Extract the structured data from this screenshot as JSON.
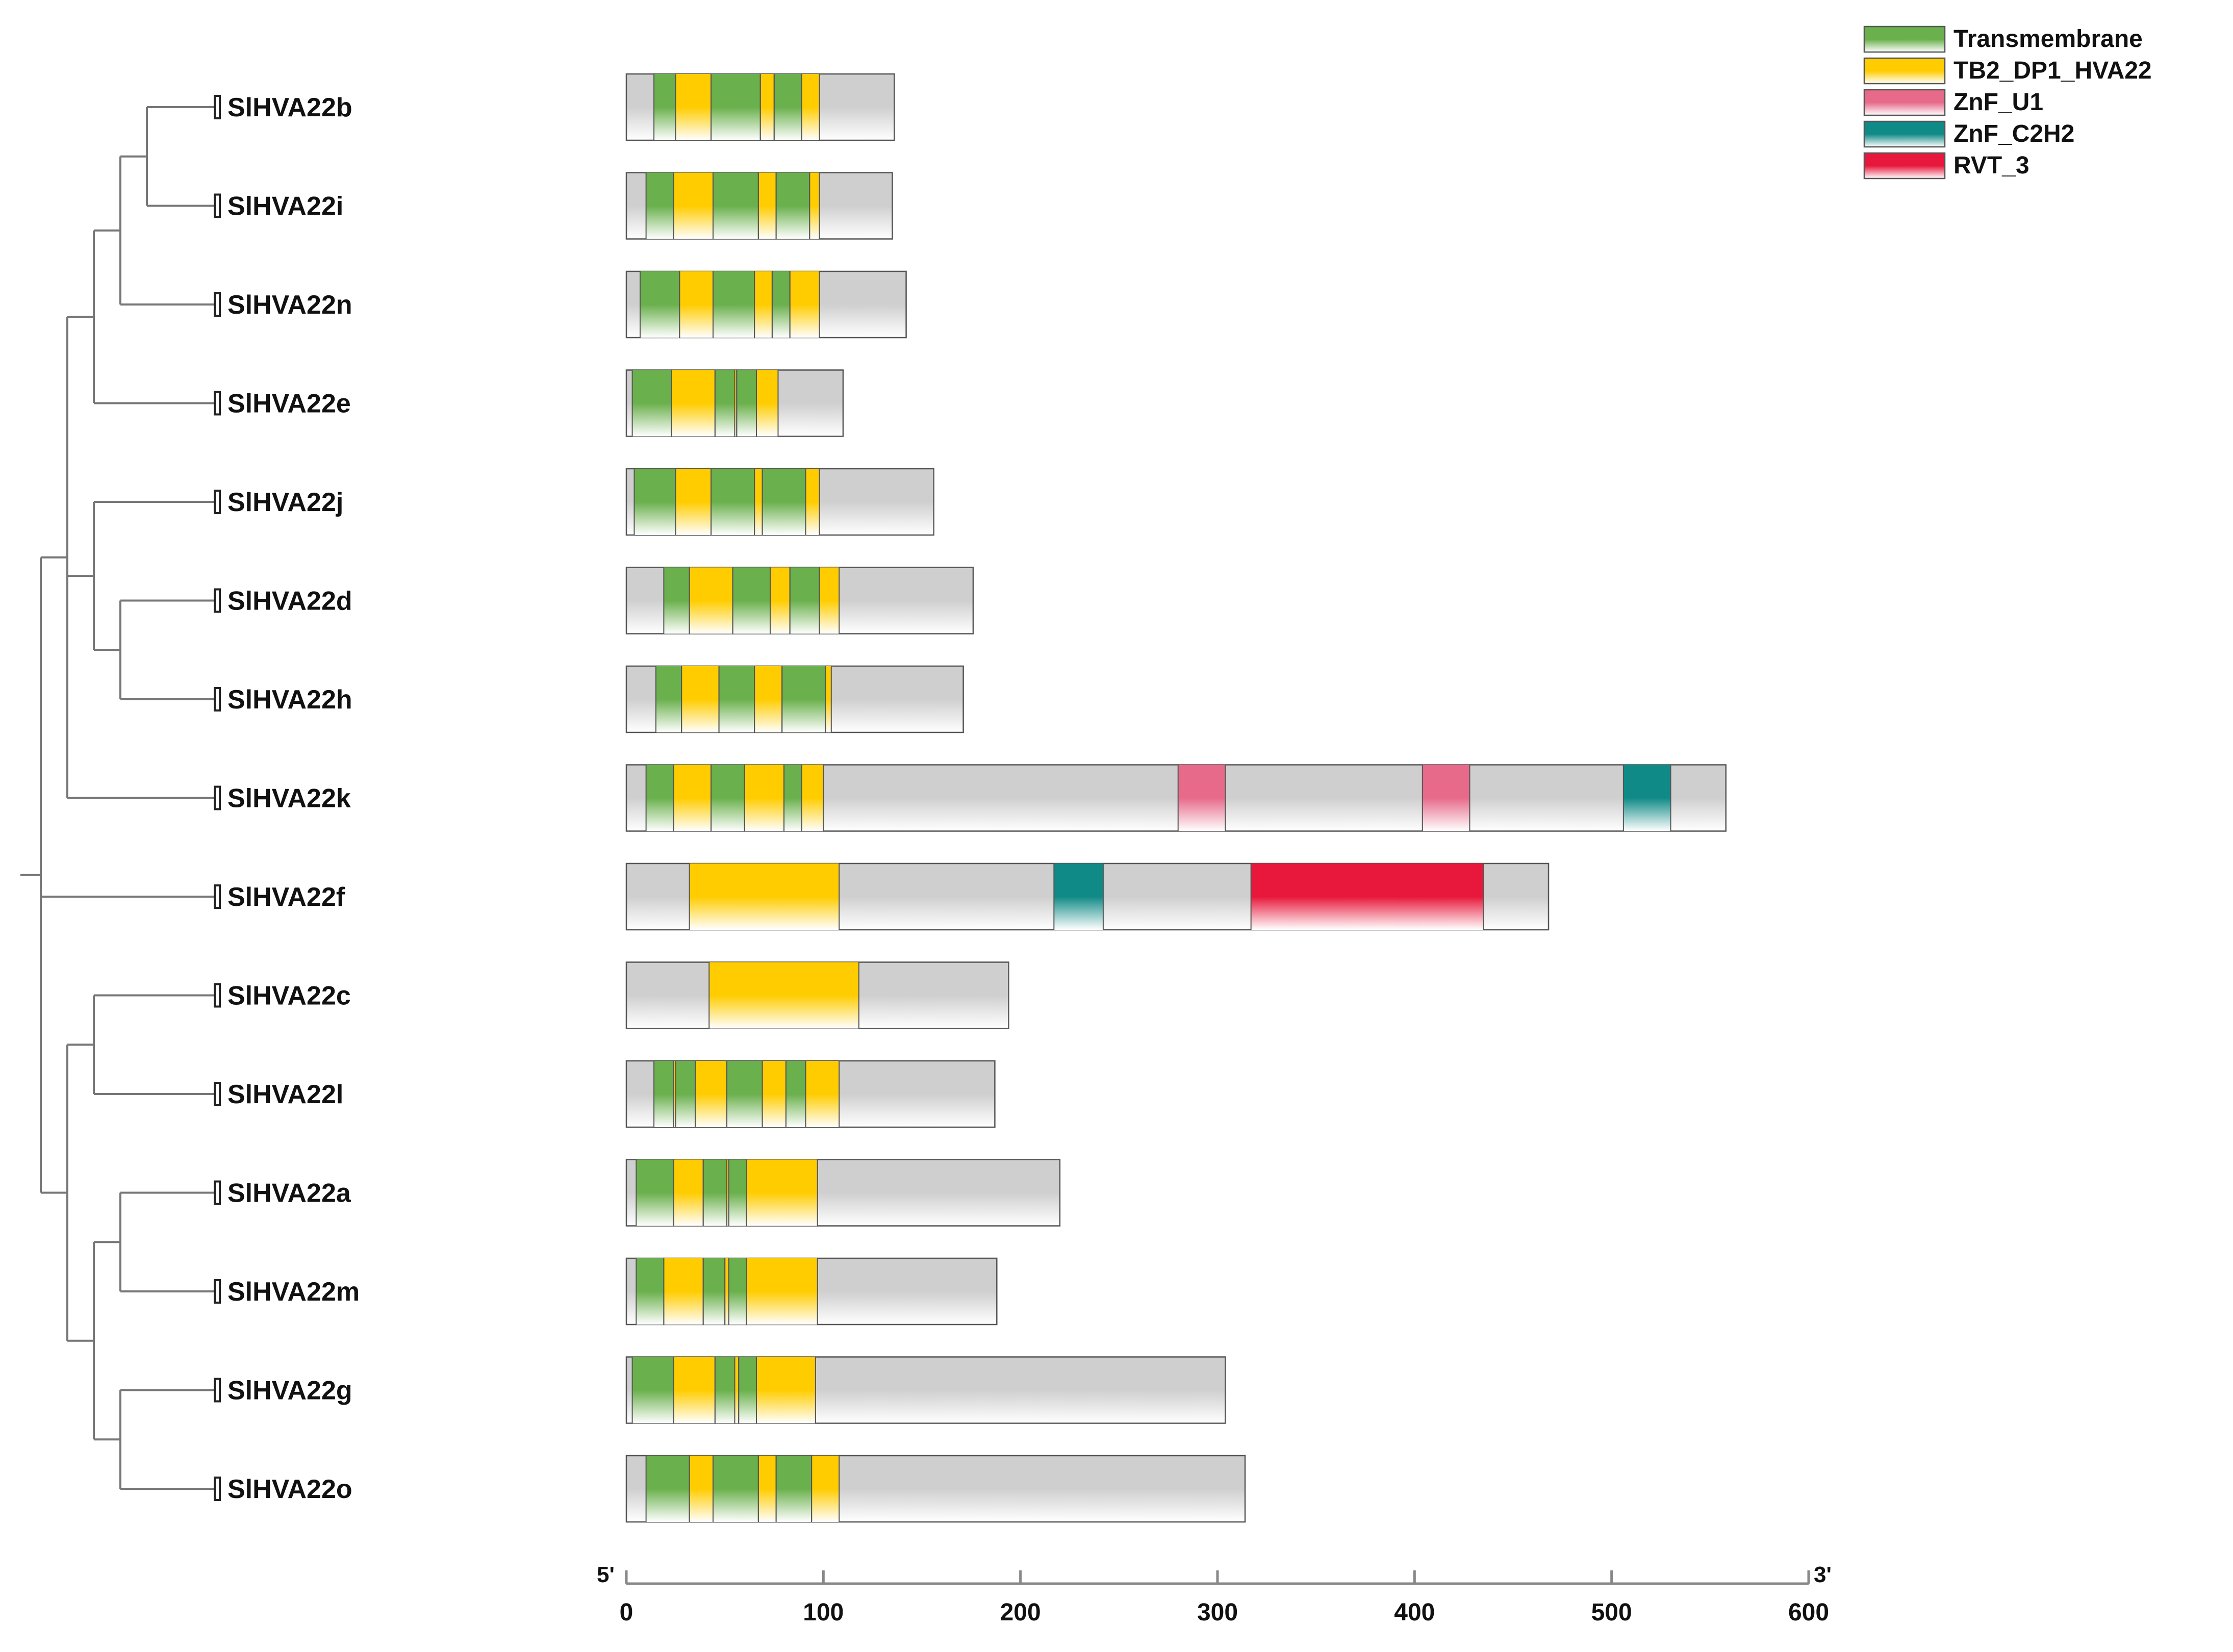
{
  "legend": [
    {
      "key": "Transmembrane",
      "label": "Transmembrane",
      "color": "#6ab04c"
    },
    {
      "key": "TB2",
      "label": "TB2_DP1_HVA22",
      "color": "#ffcc00"
    },
    {
      "key": "ZnF_U1",
      "label": "ZnF_U1",
      "color": "#e76a8a"
    },
    {
      "key": "ZnF_C2H2",
      "label": "ZnF_C2H2",
      "color": "#108a86"
    },
    {
      "key": "RVT_3",
      "label": "RVT_3",
      "color": "#e8183c"
    }
  ],
  "axis": {
    "min": 0,
    "max": 600,
    "step": 100,
    "ticks": [
      "0",
      "100",
      "200",
      "300",
      "400",
      "500",
      "600"
    ],
    "left_label": "5'",
    "right_label": "3'"
  },
  "proteins": [
    {
      "name": "SlHVA22b",
      "length": 136,
      "domains": [
        {
          "type": "Transmembrane",
          "start": 14,
          "end": 25
        },
        {
          "type": "TB2",
          "start": 25,
          "end": 43
        },
        {
          "type": "Transmembrane",
          "start": 43,
          "end": 68
        },
        {
          "type": "TB2",
          "start": 68,
          "end": 75
        },
        {
          "type": "Transmembrane",
          "start": 75,
          "end": 89
        },
        {
          "type": "TB2",
          "start": 89,
          "end": 98
        }
      ]
    },
    {
      "name": "SlHVA22i",
      "length": 135,
      "domains": [
        {
          "type": "Transmembrane",
          "start": 10,
          "end": 24
        },
        {
          "type": "TB2",
          "start": 24,
          "end": 44
        },
        {
          "type": "Transmembrane",
          "start": 44,
          "end": 67
        },
        {
          "type": "TB2",
          "start": 67,
          "end": 76
        },
        {
          "type": "Transmembrane",
          "start": 76,
          "end": 93
        },
        {
          "type": "TB2",
          "start": 93,
          "end": 98
        }
      ]
    },
    {
      "name": "SlHVA22n",
      "length": 142,
      "domains": [
        {
          "type": "Transmembrane",
          "start": 7,
          "end": 27
        },
        {
          "type": "TB2",
          "start": 27,
          "end": 44
        },
        {
          "type": "Transmembrane",
          "start": 44,
          "end": 65
        },
        {
          "type": "TB2",
          "start": 65,
          "end": 74
        },
        {
          "type": "Transmembrane",
          "start": 74,
          "end": 83
        },
        {
          "type": "TB2",
          "start": 83,
          "end": 98
        }
      ]
    },
    {
      "name": "SlHVA22e",
      "length": 110,
      "domains": [
        {
          "type": "Transmembrane",
          "start": 3,
          "end": 23
        },
        {
          "type": "TB2",
          "start": 23,
          "end": 45
        },
        {
          "type": "Transmembrane",
          "start": 45,
          "end": 55
        },
        {
          "type": "TB2",
          "start": 55,
          "end": 56
        },
        {
          "type": "Transmembrane",
          "start": 56,
          "end": 66
        },
        {
          "type": "TB2",
          "start": 66,
          "end": 77
        }
      ]
    },
    {
      "name": "SlHVA22j",
      "length": 156,
      "domains": [
        {
          "type": "Transmembrane",
          "start": 4,
          "end": 25
        },
        {
          "type": "TB2",
          "start": 25,
          "end": 43
        },
        {
          "type": "Transmembrane",
          "start": 43,
          "end": 65
        },
        {
          "type": "TB2",
          "start": 65,
          "end": 69
        },
        {
          "type": "Transmembrane",
          "start": 69,
          "end": 91
        },
        {
          "type": "TB2",
          "start": 91,
          "end": 98
        }
      ]
    },
    {
      "name": "SlHVA22d",
      "length": 176,
      "domains": [
        {
          "type": "Transmembrane",
          "start": 19,
          "end": 32
        },
        {
          "type": "TB2",
          "start": 32,
          "end": 54
        },
        {
          "type": "Transmembrane",
          "start": 54,
          "end": 73
        },
        {
          "type": "TB2",
          "start": 73,
          "end": 83
        },
        {
          "type": "Transmembrane",
          "start": 83,
          "end": 98
        },
        {
          "type": "TB2",
          "start": 98,
          "end": 108
        }
      ]
    },
    {
      "name": "SlHVA22h",
      "length": 171,
      "domains": [
        {
          "type": "Transmembrane",
          "start": 15,
          "end": 28
        },
        {
          "type": "TB2",
          "start": 28,
          "end": 47
        },
        {
          "type": "Transmembrane",
          "start": 47,
          "end": 65
        },
        {
          "type": "TB2",
          "start": 65,
          "end": 79
        },
        {
          "type": "Transmembrane",
          "start": 79,
          "end": 101
        },
        {
          "type": "TB2",
          "start": 101,
          "end": 104
        }
      ]
    },
    {
      "name": "SlHVA22k",
      "length": 558,
      "domains": [
        {
          "type": "Transmembrane",
          "start": 10,
          "end": 24
        },
        {
          "type": "TB2",
          "start": 24,
          "end": 43
        },
        {
          "type": "Transmembrane",
          "start": 43,
          "end": 60
        },
        {
          "type": "TB2",
          "start": 60,
          "end": 80
        },
        {
          "type": "Transmembrane",
          "start": 80,
          "end": 89
        },
        {
          "type": "TB2",
          "start": 89,
          "end": 100
        },
        {
          "type": "ZnF_U1",
          "start": 280,
          "end": 304
        },
        {
          "type": "ZnF_U1",
          "start": 404,
          "end": 428
        },
        {
          "type": "ZnF_C2H2",
          "start": 506,
          "end": 530
        }
      ]
    },
    {
      "name": "SlHVA22f",
      "length": 468,
      "domains": [
        {
          "type": "TB2",
          "start": 32,
          "end": 108
        },
        {
          "type": "ZnF_C2H2",
          "start": 217,
          "end": 242
        },
        {
          "type": "RVT_3",
          "start": 317,
          "end": 435
        }
      ]
    },
    {
      "name": "SlHVA22c",
      "length": 194,
      "domains": [
        {
          "type": "TB2",
          "start": 42,
          "end": 118
        }
      ]
    },
    {
      "name": "SlHVA22l",
      "length": 187,
      "domains": [
        {
          "type": "Transmembrane",
          "start": 14,
          "end": 24
        },
        {
          "type": "TB2",
          "start": 24,
          "end": 25
        },
        {
          "type": "Transmembrane",
          "start": 25,
          "end": 35
        },
        {
          "type": "TB2",
          "start": 35,
          "end": 51
        },
        {
          "type": "Transmembrane",
          "start": 51,
          "end": 69
        },
        {
          "type": "TB2",
          "start": 69,
          "end": 81
        },
        {
          "type": "Transmembrane",
          "start": 81,
          "end": 91
        },
        {
          "type": "TB2",
          "start": 91,
          "end": 108
        }
      ]
    },
    {
      "name": "SlHVA22a",
      "length": 220,
      "domains": [
        {
          "type": "Transmembrane",
          "start": 5,
          "end": 24
        },
        {
          "type": "TB2",
          "start": 24,
          "end": 39
        },
        {
          "type": "Transmembrane",
          "start": 39,
          "end": 51
        },
        {
          "type": "TB2",
          "start": 51,
          "end": 52
        },
        {
          "type": "Transmembrane",
          "start": 52,
          "end": 61
        },
        {
          "type": "TB2",
          "start": 61,
          "end": 97
        }
      ]
    },
    {
      "name": "SlHVA22m",
      "length": 188,
      "domains": [
        {
          "type": "Transmembrane",
          "start": 5,
          "end": 19
        },
        {
          "type": "TB2",
          "start": 19,
          "end": 39
        },
        {
          "type": "Transmembrane",
          "start": 39,
          "end": 50
        },
        {
          "type": "TB2",
          "start": 50,
          "end": 52
        },
        {
          "type": "Transmembrane",
          "start": 52,
          "end": 61
        },
        {
          "type": "TB2",
          "start": 61,
          "end": 97
        }
      ]
    },
    {
      "name": "SlHVA22g",
      "length": 304,
      "domains": [
        {
          "type": "Transmembrane",
          "start": 3,
          "end": 24
        },
        {
          "type": "TB2",
          "start": 24,
          "end": 45
        },
        {
          "type": "Transmembrane",
          "start": 45,
          "end": 55
        },
        {
          "type": "TB2",
          "start": 55,
          "end": 57
        },
        {
          "type": "Transmembrane",
          "start": 57,
          "end": 66
        },
        {
          "type": "TB2",
          "start": 66,
          "end": 96
        }
      ]
    },
    {
      "name": "SlHVA22o",
      "length": 314,
      "domains": [
        {
          "type": "Transmembrane",
          "start": 10,
          "end": 32
        },
        {
          "type": "TB2",
          "start": 32,
          "end": 44
        },
        {
          "type": "Transmembrane",
          "start": 44,
          "end": 67
        },
        {
          "type": "TB2",
          "start": 67,
          "end": 76
        },
        {
          "type": "Transmembrane",
          "start": 76,
          "end": 94
        },
        {
          "type": "TB2",
          "start": 94,
          "end": 108
        }
      ]
    }
  ],
  "tree": {
    "children": [
      {
        "children": [
          {
            "children": [
              {
                "children": [
                  {
                    "children": [
                      {
                        "leaf": "SlHVA22b"
                      },
                      {
                        "leaf": "SlHVA22i"
                      }
                    ]
                  },
                  {
                    "leaf": "SlHVA22n"
                  }
                ]
              },
              {
                "leaf": "SlHVA22e"
              }
            ]
          },
          {
            "children": [
              {
                "leaf": "SlHVA22j"
              },
              {
                "children": [
                  {
                    "leaf": "SlHVA22d"
                  },
                  {
                    "leaf": "SlHVA22h"
                  }
                ]
              }
            ]
          },
          {
            "leaf": "SlHVA22k"
          }
        ]
      },
      {
        "leaf": "SlHVA22f"
      },
      {
        "children": [
          {
            "children": [
              {
                "leaf": "SlHVA22c"
              },
              {
                "leaf": "SlHVA22l"
              }
            ]
          },
          {
            "children": [
              {
                "children": [
                  {
                    "leaf": "SlHVA22a"
                  },
                  {
                    "leaf": "SlHVA22m"
                  }
                ]
              },
              {
                "children": [
                  {
                    "leaf": "SlHVA22g"
                  },
                  {
                    "leaf": "SlHVA22o"
                  }
                ]
              }
            ]
          }
        ]
      }
    ]
  }
}
